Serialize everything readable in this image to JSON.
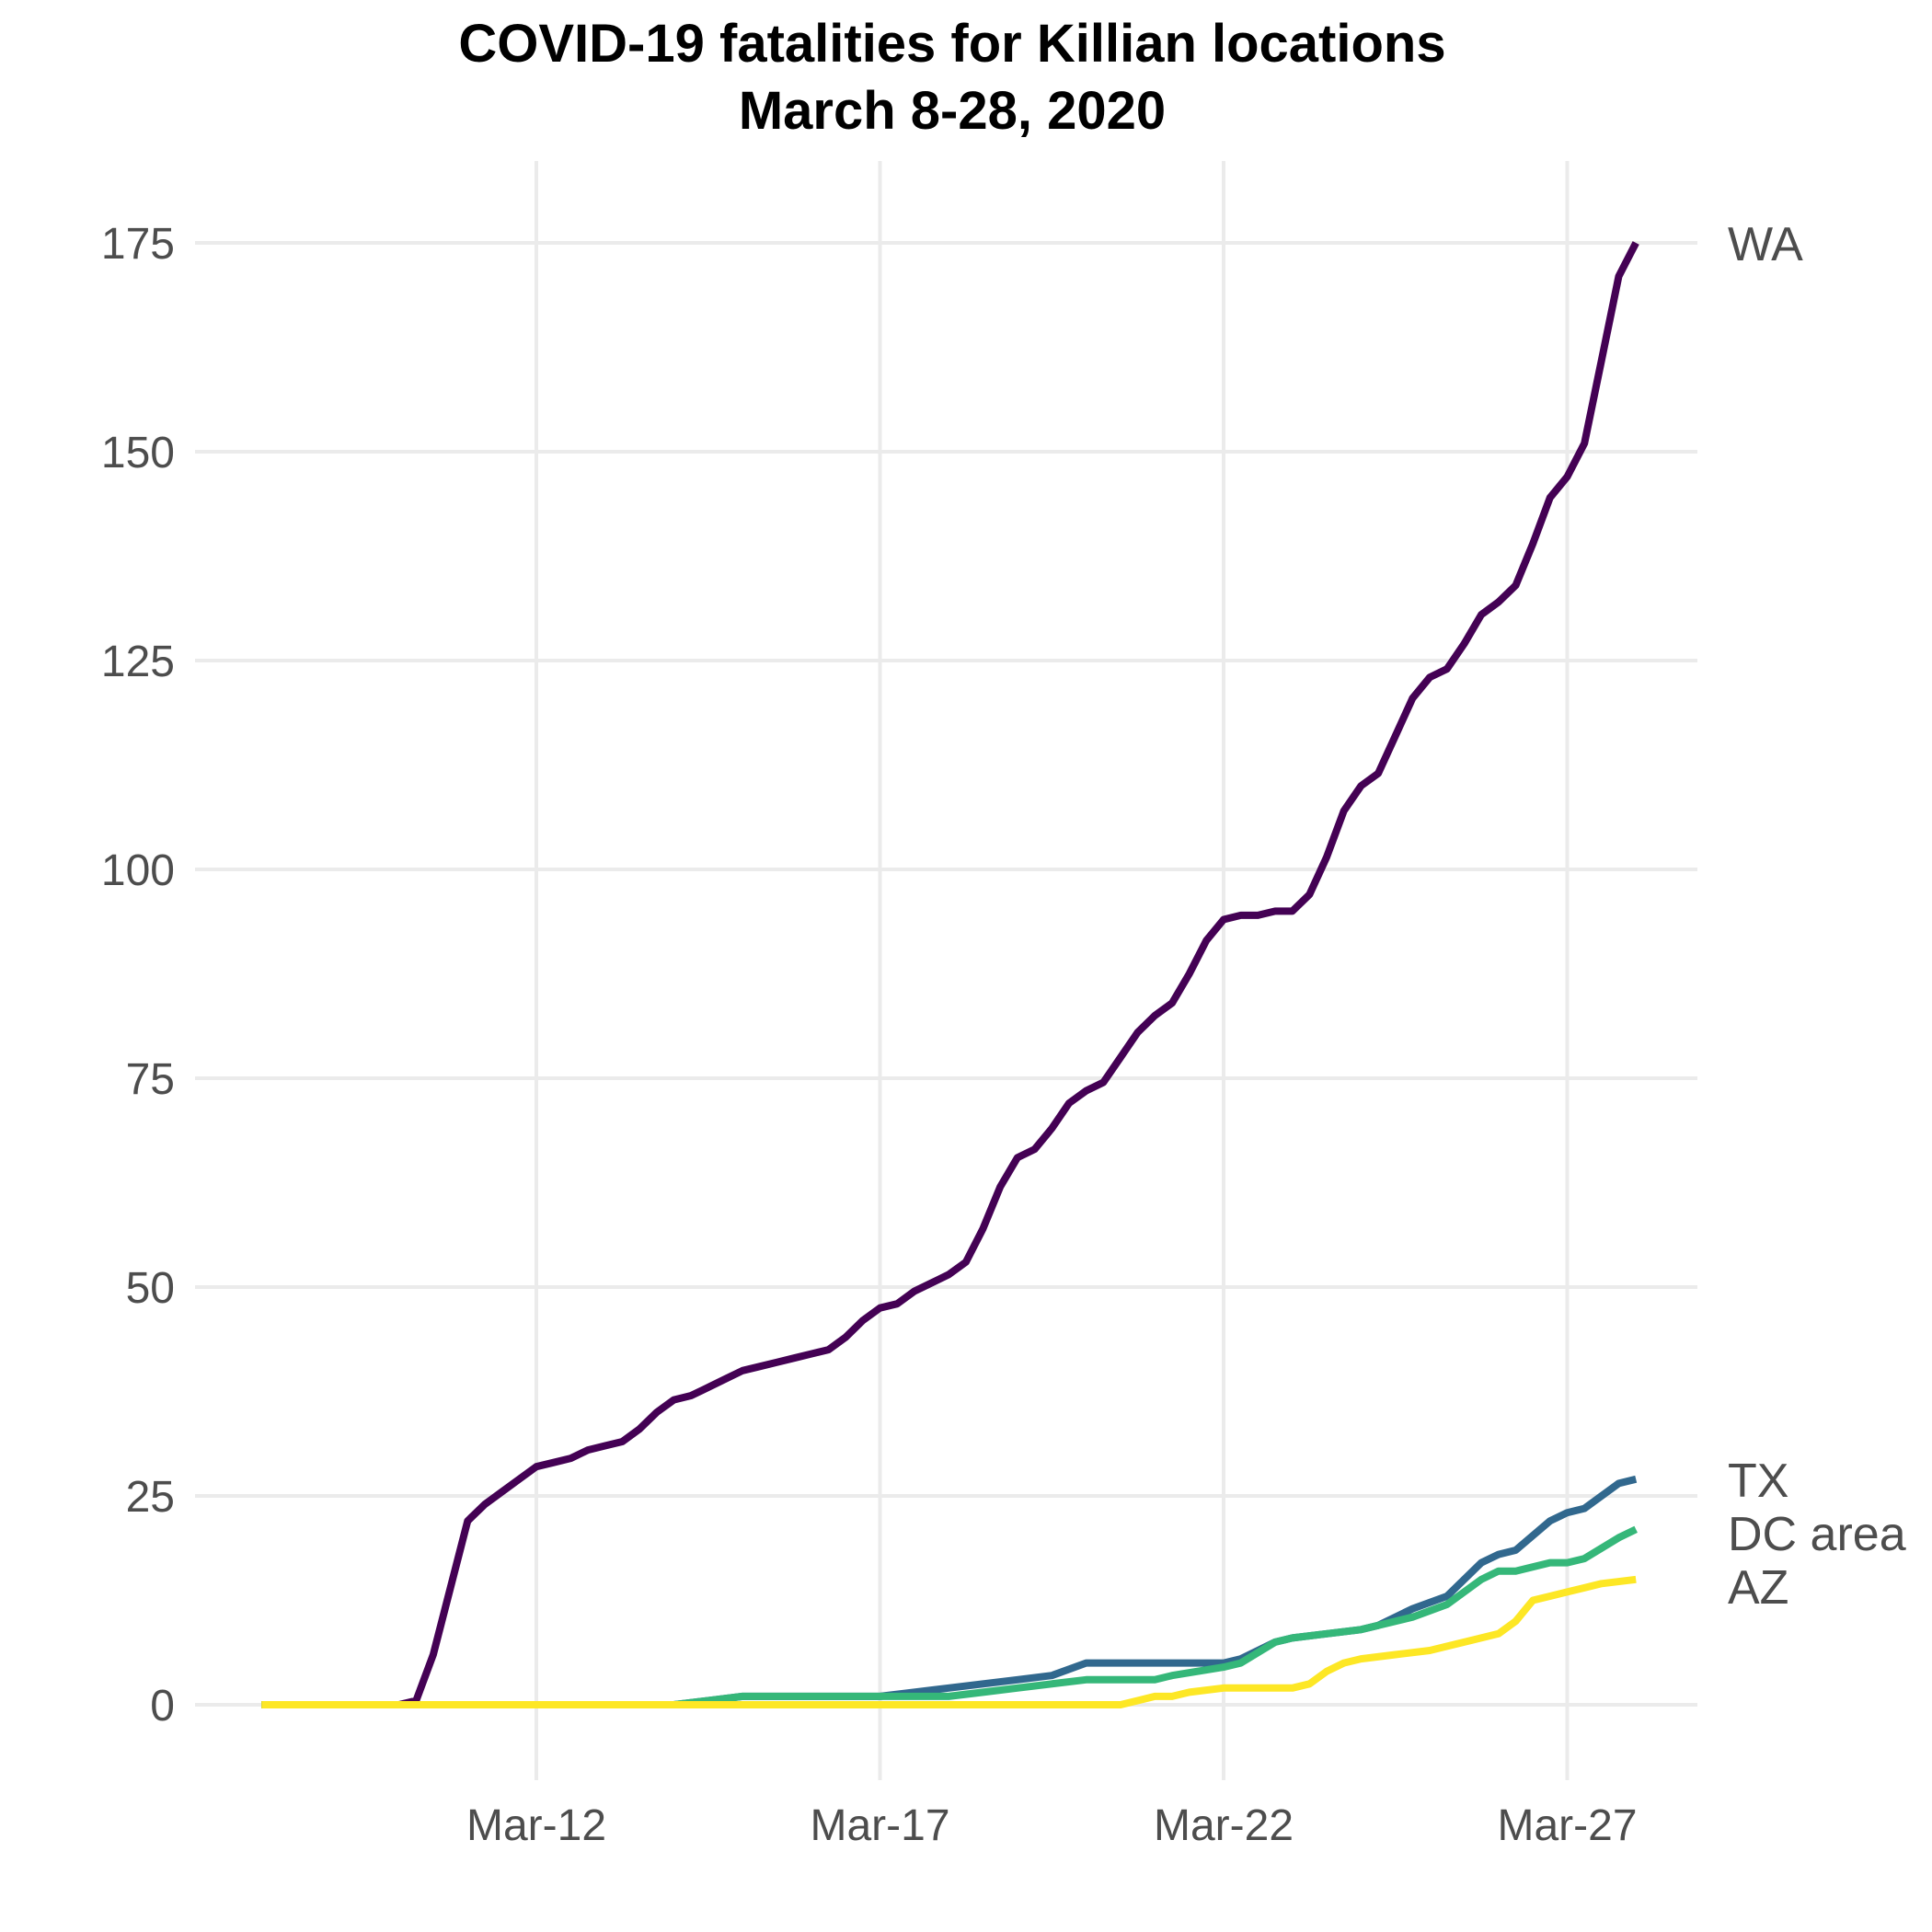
{
  "chart_data": {
    "type": "line",
    "title": "COVID-19 fatalities for Killian locations",
    "subtitle": "March 8-28, 2020",
    "xlabel": "",
    "ylabel": "",
    "x_axis": {
      "type": "date",
      "range": [
        "2020-03-08",
        "2020-03-29"
      ],
      "ticks": [
        {
          "value": "2020-03-12",
          "label": "Mar-12"
        },
        {
          "value": "2020-03-17",
          "label": "Mar-17"
        },
        {
          "value": "2020-03-22",
          "label": "Mar-22"
        },
        {
          "value": "2020-03-27",
          "label": "Mar-27"
        }
      ]
    },
    "y_axis": {
      "range": [
        -8,
        184
      ],
      "ticks": [
        0,
        25,
        50,
        75,
        100,
        125,
        150,
        175
      ]
    },
    "grid": true,
    "legend": "direct labels at right end of lines",
    "series": [
      {
        "name": "WA",
        "color": "#440154",
        "points": [
          [
            "2020-03-08 00:00",
            0
          ],
          [
            "2020-03-08 12:00",
            0
          ],
          [
            "2020-03-09 00:00",
            0
          ],
          [
            "2020-03-09 12:00",
            0
          ],
          [
            "2020-03-10 00:00",
            0
          ],
          [
            "2020-03-10 06:00",
            0.5
          ],
          [
            "2020-03-10 12:00",
            6
          ],
          [
            "2020-03-10 18:00",
            14
          ],
          [
            "2020-03-11 00:00",
            22
          ],
          [
            "2020-03-11 06:00",
            24
          ],
          [
            "2020-03-11 12:00",
            25.5
          ],
          [
            "2020-03-11 18:00",
            27
          ],
          [
            "2020-03-12 00:00",
            28.5
          ],
          [
            "2020-03-12 06:00",
            29
          ],
          [
            "2020-03-12 12:00",
            29.5
          ],
          [
            "2020-03-12 18:00",
            30.5
          ],
          [
            "2020-03-13 00:00",
            31
          ],
          [
            "2020-03-13 06:00",
            31.5
          ],
          [
            "2020-03-13 12:00",
            33
          ],
          [
            "2020-03-13 18:00",
            35
          ],
          [
            "2020-03-14 00:00",
            36.5
          ],
          [
            "2020-03-14 06:00",
            37
          ],
          [
            "2020-03-14 12:00",
            38
          ],
          [
            "2020-03-14 18:00",
            39
          ],
          [
            "2020-03-15 00:00",
            40
          ],
          [
            "2020-03-15 06:00",
            40.5
          ],
          [
            "2020-03-15 12:00",
            41
          ],
          [
            "2020-03-15 18:00",
            41.5
          ],
          [
            "2020-03-16 00:00",
            42
          ],
          [
            "2020-03-16 06:00",
            42.5
          ],
          [
            "2020-03-16 12:00",
            44
          ],
          [
            "2020-03-16 18:00",
            46
          ],
          [
            "2020-03-17 00:00",
            47.5
          ],
          [
            "2020-03-17 06:00",
            48
          ],
          [
            "2020-03-17 12:00",
            49.5
          ],
          [
            "2020-03-17 18:00",
            50.5
          ],
          [
            "2020-03-18 00:00",
            51.5
          ],
          [
            "2020-03-18 06:00",
            53
          ],
          [
            "2020-03-18 12:00",
            57
          ],
          [
            "2020-03-18 18:00",
            62
          ],
          [
            "2020-03-19 00:00",
            65.5
          ],
          [
            "2020-03-19 06:00",
            66.5
          ],
          [
            "2020-03-19 12:00",
            69
          ],
          [
            "2020-03-19 18:00",
            72
          ],
          [
            "2020-03-20 00:00",
            73.5
          ],
          [
            "2020-03-20 06:00",
            74.5
          ],
          [
            "2020-03-20 12:00",
            77.5
          ],
          [
            "2020-03-20 18:00",
            80.5
          ],
          [
            "2020-03-21 00:00",
            82.5
          ],
          [
            "2020-03-21 06:00",
            84
          ],
          [
            "2020-03-21 12:00",
            87.5
          ],
          [
            "2020-03-21 18:00",
            91.5
          ],
          [
            "2020-03-22 00:00",
            94
          ],
          [
            "2020-03-22 06:00",
            94.5
          ],
          [
            "2020-03-22 12:00",
            94.5
          ],
          [
            "2020-03-22 18:00",
            95
          ],
          [
            "2020-03-23 00:00",
            95
          ],
          [
            "2020-03-23 06:00",
            97
          ],
          [
            "2020-03-23 12:00",
            101.5
          ],
          [
            "2020-03-23 18:00",
            107
          ],
          [
            "2020-03-24 00:00",
            110
          ],
          [
            "2020-03-24 06:00",
            111.5
          ],
          [
            "2020-03-24 12:00",
            116
          ],
          [
            "2020-03-24 18:00",
            120.5
          ],
          [
            "2020-03-25 00:00",
            123
          ],
          [
            "2020-03-25 06:00",
            124
          ],
          [
            "2020-03-25 12:00",
            127
          ],
          [
            "2020-03-25 18:00",
            130.5
          ],
          [
            "2020-03-26 00:00",
            132
          ],
          [
            "2020-03-26 06:00",
            134
          ],
          [
            "2020-03-26 12:00",
            139
          ],
          [
            "2020-03-26 18:00",
            144.5
          ],
          [
            "2020-03-27 00:00",
            147
          ],
          [
            "2020-03-27 06:00",
            151
          ],
          [
            "2020-03-27 12:00",
            161
          ],
          [
            "2020-03-27 18:00",
            171
          ],
          [
            "2020-03-28 00:00",
            175
          ]
        ]
      },
      {
        "name": "TX",
        "color": "#31688e",
        "points": [
          [
            "2020-03-08 00:00",
            0
          ],
          [
            "2020-03-14 00:00",
            0
          ],
          [
            "2020-03-14 12:00",
            0.5
          ],
          [
            "2020-03-15 00:00",
            1
          ],
          [
            "2020-03-17 00:00",
            1
          ],
          [
            "2020-03-17 12:00",
            1.5
          ],
          [
            "2020-03-18 00:00",
            2
          ],
          [
            "2020-03-18 12:00",
            2.5
          ],
          [
            "2020-03-19 00:00",
            3
          ],
          [
            "2020-03-19 12:00",
            3.5
          ],
          [
            "2020-03-20 00:00",
            5
          ],
          [
            "2020-03-20 12:00",
            5
          ],
          [
            "2020-03-21 00:00",
            5
          ],
          [
            "2020-03-22 00:00",
            5
          ],
          [
            "2020-03-22 06:00",
            5.5
          ],
          [
            "2020-03-22 18:00",
            7.5
          ],
          [
            "2020-03-23 00:00",
            8
          ],
          [
            "2020-03-23 12:00",
            8.5
          ],
          [
            "2020-03-24 00:00",
            9
          ],
          [
            "2020-03-24 06:00",
            9.5
          ],
          [
            "2020-03-24 18:00",
            11.5
          ],
          [
            "2020-03-25 06:00",
            13
          ],
          [
            "2020-03-25 18:00",
            17
          ],
          [
            "2020-03-26 00:00",
            18
          ],
          [
            "2020-03-26 06:00",
            18.5
          ],
          [
            "2020-03-26 18:00",
            22
          ],
          [
            "2020-03-27 00:00",
            23
          ],
          [
            "2020-03-27 06:00",
            23.5
          ],
          [
            "2020-03-27 18:00",
            26.5
          ],
          [
            "2020-03-28 00:00",
            27
          ]
        ]
      },
      {
        "name": "DC area",
        "color": "#35b779",
        "points": [
          [
            "2020-03-08 00:00",
            0
          ],
          [
            "2020-03-14 00:00",
            0
          ],
          [
            "2020-03-14 12:00",
            0.5
          ],
          [
            "2020-03-15 00:00",
            1
          ],
          [
            "2020-03-17 00:00",
            1
          ],
          [
            "2020-03-18 00:00",
            1
          ],
          [
            "2020-03-18 12:00",
            1.5
          ],
          [
            "2020-03-19 00:00",
            2
          ],
          [
            "2020-03-19 12:00",
            2.5
          ],
          [
            "2020-03-20 00:00",
            3
          ],
          [
            "2020-03-21 00:00",
            3
          ],
          [
            "2020-03-21 06:00",
            3.5
          ],
          [
            "2020-03-22 00:00",
            4.5
          ],
          [
            "2020-03-22 06:00",
            5
          ],
          [
            "2020-03-22 18:00",
            7.5
          ],
          [
            "2020-03-23 00:00",
            8
          ],
          [
            "2020-03-23 12:00",
            8.5
          ],
          [
            "2020-03-24 00:00",
            9
          ],
          [
            "2020-03-24 06:00",
            9.5
          ],
          [
            "2020-03-24 18:00",
            10.5
          ],
          [
            "2020-03-25 06:00",
            12
          ],
          [
            "2020-03-25 18:00",
            15
          ],
          [
            "2020-03-26 00:00",
            16
          ],
          [
            "2020-03-26 06:00",
            16
          ],
          [
            "2020-03-26 18:00",
            17
          ],
          [
            "2020-03-27 00:00",
            17
          ],
          [
            "2020-03-27 06:00",
            17.5
          ],
          [
            "2020-03-27 18:00",
            20
          ],
          [
            "2020-03-28 00:00",
            21
          ]
        ]
      },
      {
        "name": "AZ",
        "color": "#fde725",
        "points": [
          [
            "2020-03-08 00:00",
            0
          ],
          [
            "2020-03-20 00:00",
            0
          ],
          [
            "2020-03-20 12:00",
            0
          ],
          [
            "2020-03-20 18:00",
            0.5
          ],
          [
            "2020-03-21 00:00",
            1
          ],
          [
            "2020-03-21 06:00",
            1
          ],
          [
            "2020-03-21 12:00",
            1.5
          ],
          [
            "2020-03-22 00:00",
            2
          ],
          [
            "2020-03-23 00:00",
            2
          ],
          [
            "2020-03-23 06:00",
            2.5
          ],
          [
            "2020-03-23 12:00",
            4
          ],
          [
            "2020-03-23 18:00",
            5
          ],
          [
            "2020-03-24 00:00",
            5.5
          ],
          [
            "2020-03-24 12:00",
            6
          ],
          [
            "2020-03-25 00:00",
            6.5
          ],
          [
            "2020-03-25 12:00",
            7.5
          ],
          [
            "2020-03-26 00:00",
            8.5
          ],
          [
            "2020-03-26 06:00",
            10
          ],
          [
            "2020-03-26 12:00",
            12.5
          ],
          [
            "2020-03-26 18:00",
            13
          ],
          [
            "2020-03-27 00:00",
            13.5
          ],
          [
            "2020-03-27 06:00",
            14
          ],
          [
            "2020-03-27 12:00",
            14.5
          ],
          [
            "2020-03-28 00:00",
            15
          ]
        ]
      }
    ]
  }
}
